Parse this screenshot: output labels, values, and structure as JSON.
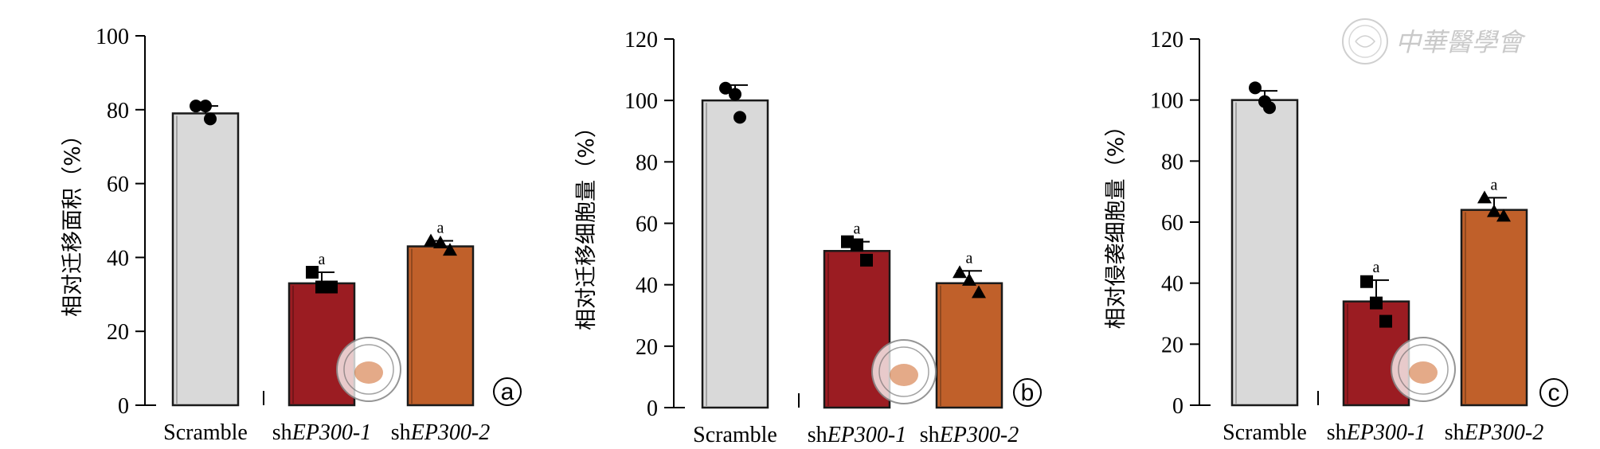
{
  "watermark": {
    "text": "中華醫學會",
    "icon": "society-seal-icon"
  },
  "chart_data": [
    {
      "type": "bar",
      "panel": "a",
      "ylabel": "相对迁移面积（%）",
      "ylim": [
        0,
        100
      ],
      "yticks": [
        0,
        20,
        40,
        60,
        80,
        100
      ],
      "categories": [
        {
          "plain": "Scramble",
          "italic": ""
        },
        {
          "plain": "sh",
          "italic": "EP300-1"
        },
        {
          "plain": "sh",
          "italic": "EP300-2"
        }
      ],
      "values": [
        79,
        33,
        43
      ],
      "errors": [
        2,
        3,
        1.5
      ],
      "points": [
        [
          81,
          81,
          77.5
        ],
        [
          36,
          32,
          32
        ],
        [
          44.5,
          44,
          42
        ]
      ],
      "markers": [
        "circle",
        "square",
        "triangle"
      ],
      "significance": [
        "",
        "a",
        "a"
      ],
      "colors": [
        "#d9d9d9",
        "#9b1c22",
        "#c0602a"
      ]
    },
    {
      "type": "bar",
      "panel": "b",
      "ylabel": "相对迁移细胞量（%）",
      "ylim": [
        0,
        120
      ],
      "yticks": [
        0,
        20,
        40,
        60,
        80,
        100,
        120
      ],
      "categories": [
        {
          "plain": "Scramble",
          "italic": ""
        },
        {
          "plain": "sh",
          "italic": "EP300-1"
        },
        {
          "plain": "sh",
          "italic": "EP300-2"
        }
      ],
      "values": [
        100,
        51,
        40.5
      ],
      "errors": [
        5,
        3,
        4
      ],
      "points": [
        [
          104,
          102,
          94.5
        ],
        [
          54,
          53,
          48
        ],
        [
          44,
          41.5,
          37.5
        ]
      ],
      "markers": [
        "circle",
        "square",
        "triangle"
      ],
      "significance": [
        "",
        "a",
        "a"
      ],
      "colors": [
        "#d9d9d9",
        "#9b1c22",
        "#c0602a"
      ]
    },
    {
      "type": "bar",
      "panel": "c",
      "ylabel": "相对侵袭细胞量（%）",
      "ylim": [
        0,
        120
      ],
      "yticks": [
        0,
        20,
        40,
        60,
        80,
        100,
        120
      ],
      "categories": [
        {
          "plain": "Scramble",
          "italic": ""
        },
        {
          "plain": "sh",
          "italic": "EP300-1"
        },
        {
          "plain": "sh",
          "italic": "EP300-2"
        }
      ],
      "values": [
        100,
        34,
        64
      ],
      "errors": [
        3,
        7,
        4
      ],
      "points": [
        [
          104,
          99.5,
          97.5
        ],
        [
          40.5,
          33.5,
          27.5
        ],
        [
          68,
          63.5,
          62
        ]
      ],
      "markers": [
        "circle",
        "square",
        "triangle"
      ],
      "significance": [
        "",
        "a",
        "a"
      ],
      "colors": [
        "#d9d9d9",
        "#9b1c22",
        "#c0602a"
      ]
    }
  ]
}
